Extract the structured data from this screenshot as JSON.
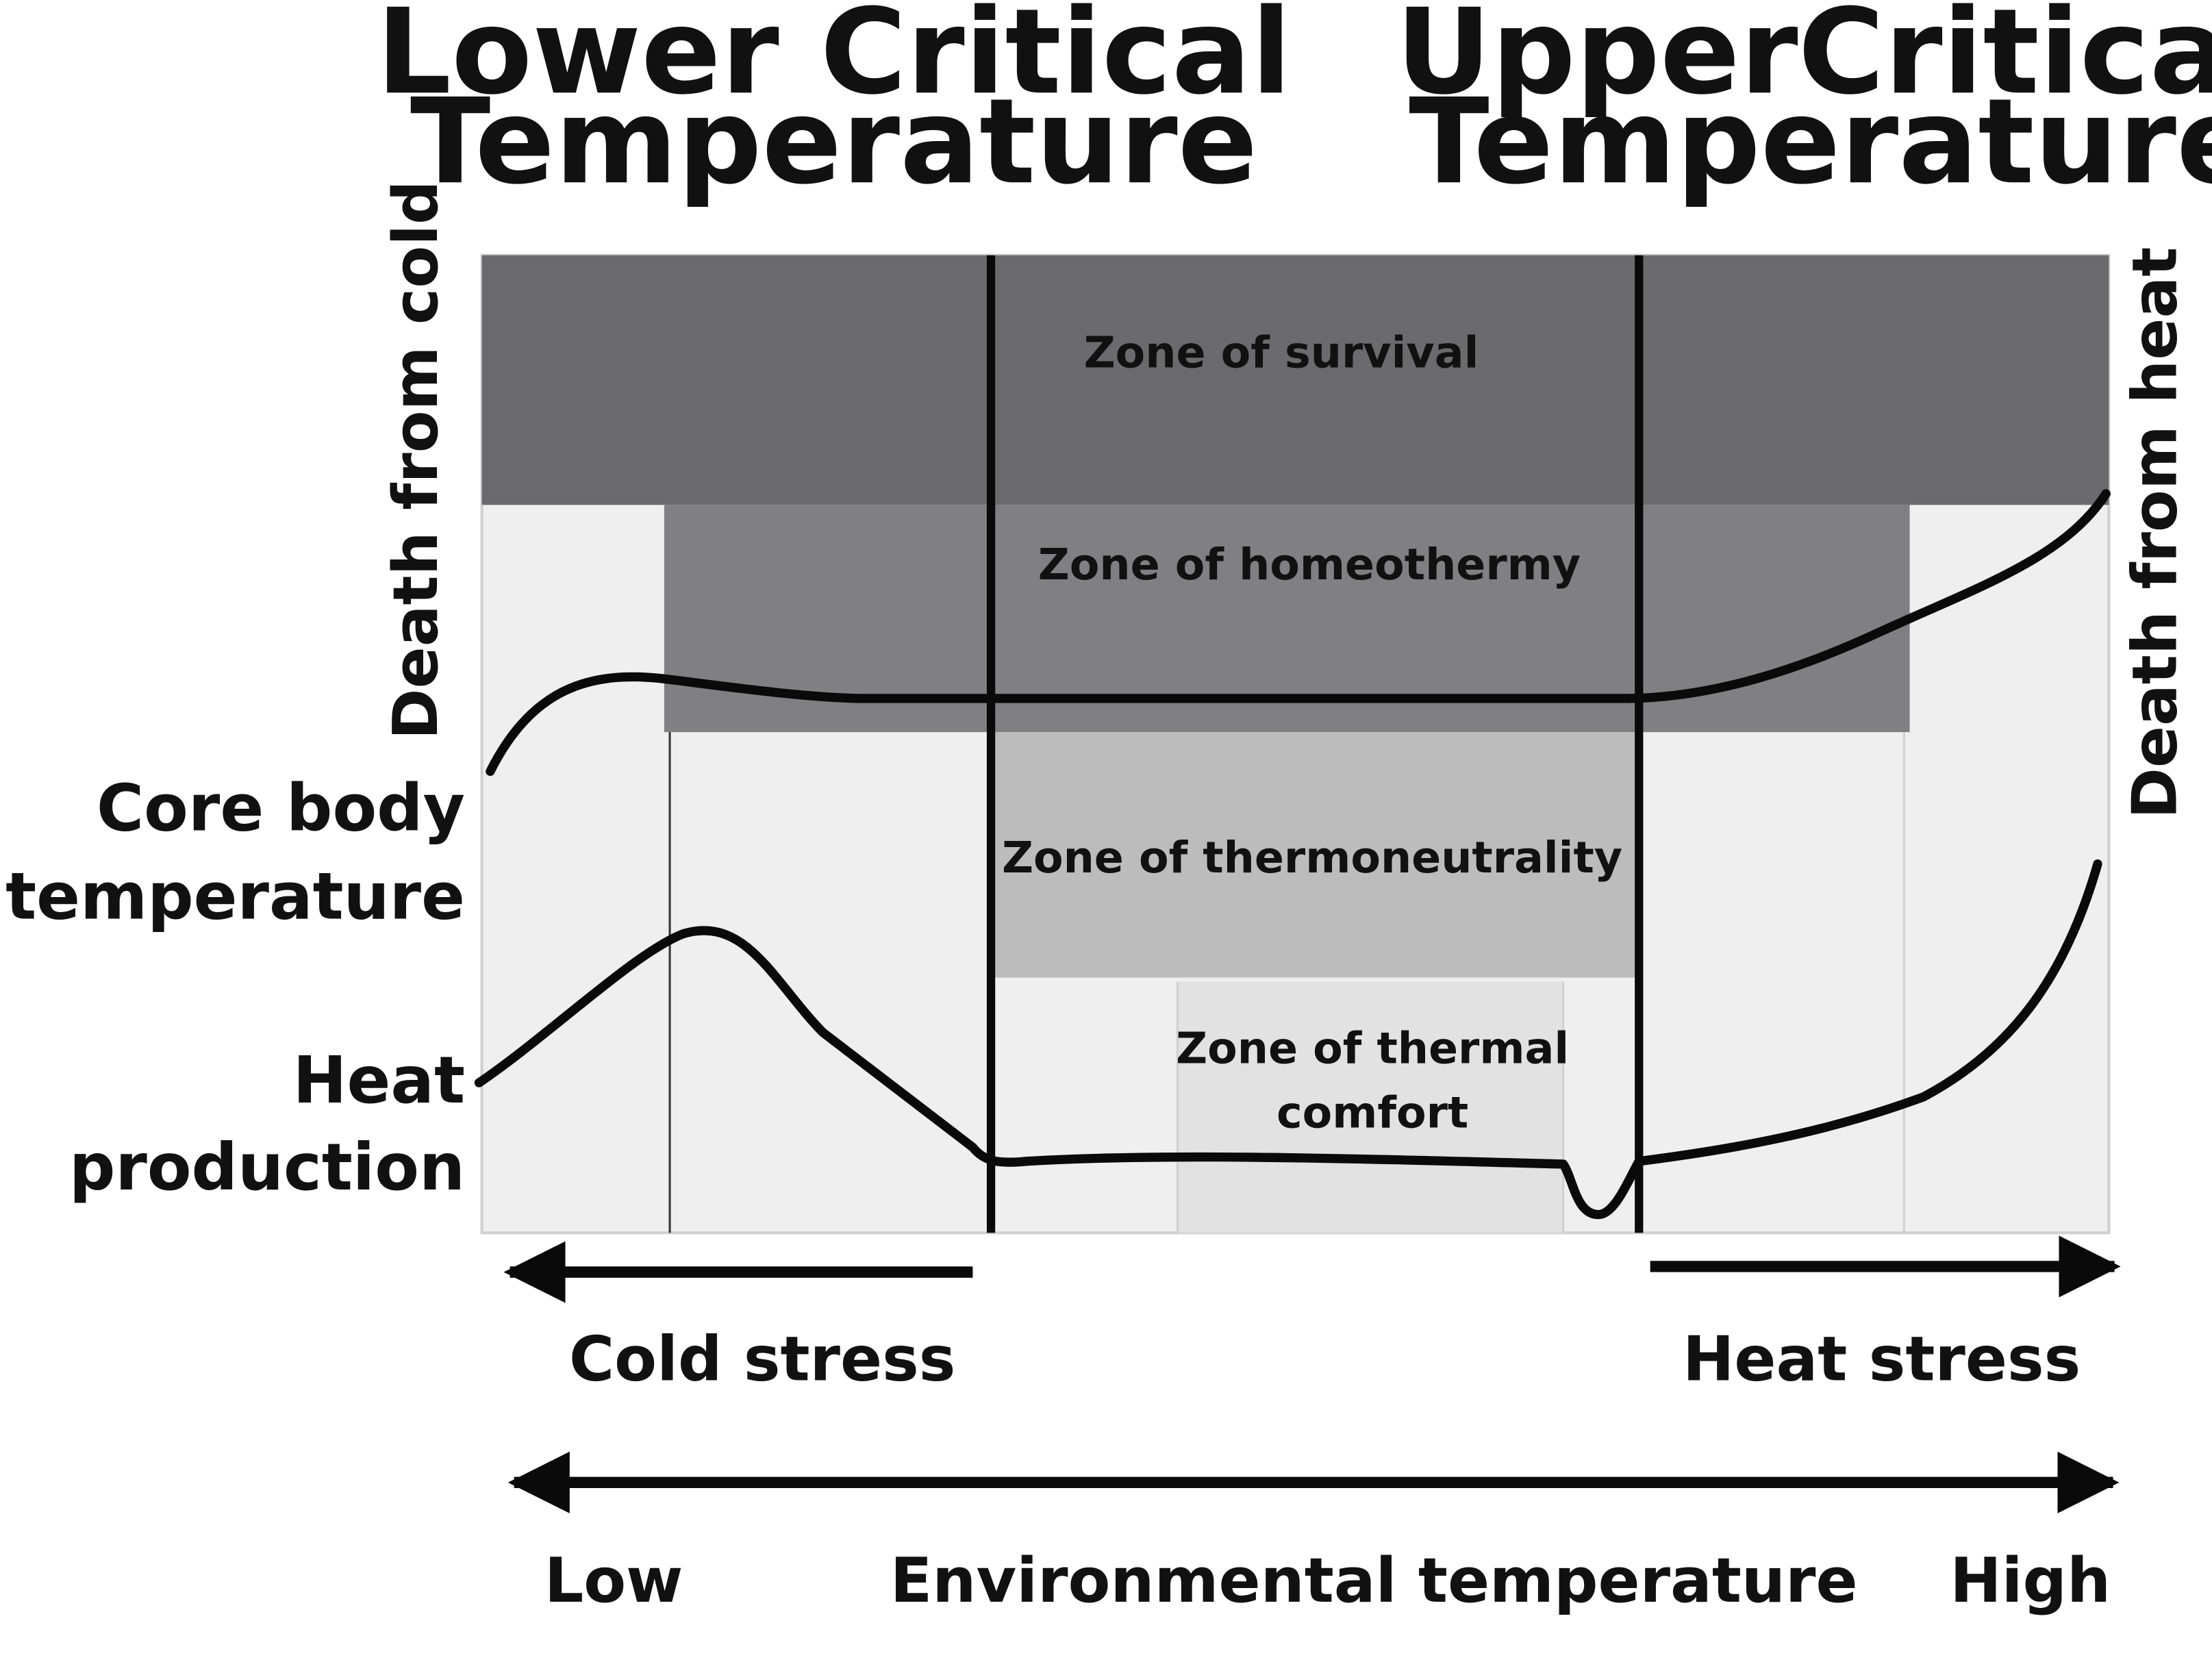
{
  "critical_labels": {
    "lower": [
      "Lower Critical",
      "Temperature"
    ],
    "upper": [
      "UpperCritical",
      "Temperature"
    ]
  },
  "side_labels": {
    "death_cold": "Death from cold",
    "death_heat": "Death from heat"
  },
  "curve_labels": {
    "core_body": [
      "Core body",
      "temperature"
    ],
    "heat_production": [
      "Heat",
      "production"
    ]
  },
  "zones": {
    "survival": "Zone of survival",
    "homeothermy": "Zone of homeothermy",
    "thermoneutrality": "Zone of thermoneutrality",
    "thermal_comfort": [
      "Zone of thermal",
      "comfort"
    ]
  },
  "stress": {
    "cold": "Cold stress",
    "heat": "Heat stress"
  },
  "axis": {
    "low": "Low",
    "title": "Environmental temperature",
    "high": "High"
  },
  "colors": {
    "survival": "#6b6b6d",
    "homeothermy": "#808084",
    "thermoneutrality": "#bcbcbc",
    "thermal_comfort": "#e2e2e2",
    "background": "#efefef",
    "line": "#0a0a0a"
  }
}
